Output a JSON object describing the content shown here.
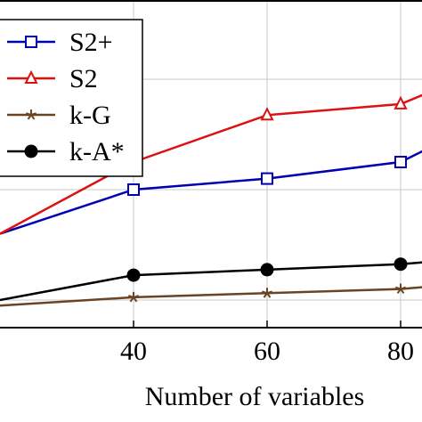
{
  "chart_data": {
    "type": "line",
    "xlabel": "Number of variables",
    "ylabel": "",
    "xlim": [
      20,
      85
    ],
    "ylim": [
      0,
      100
    ],
    "x_ticks": [
      40,
      60,
      80
    ],
    "y_grid": [
      10,
      50,
      90
    ],
    "grid": true,
    "legend_position": "top-left",
    "series": [
      {
        "name": "S2+",
        "color": "#0000b3",
        "marker": "square-open",
        "x": [
          20,
          40,
          60,
          80,
          85
        ],
        "y": [
          34,
          50,
          54,
          60,
          66
        ]
      },
      {
        "name": "S2",
        "color": "#dd1111",
        "marker": "triangle-open",
        "x": [
          20,
          40,
          60,
          80,
          85
        ],
        "y": [
          34,
          60,
          77,
          81,
          86
        ]
      },
      {
        "name": "k-G",
        "color": "#6b4423",
        "marker": "star",
        "x": [
          20,
          40,
          60,
          80,
          85
        ],
        "y": [
          8,
          11,
          12.5,
          14,
          15
        ]
      },
      {
        "name": "k-A*",
        "color": "#000000",
        "marker": "circle-filled",
        "x": [
          20,
          40,
          60,
          80,
          85
        ],
        "y": [
          10,
          19,
          21,
          23,
          24
        ]
      }
    ]
  }
}
